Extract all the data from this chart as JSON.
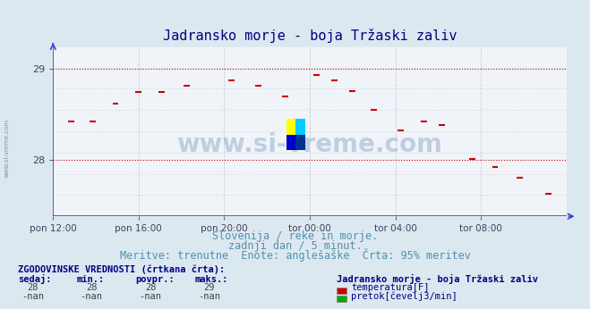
{
  "title": "Jadransko morje - boja Tržaski zaliv",
  "title_color": "#000080",
  "title_fontsize": 11,
  "bg_color": "#dce8f0",
  "plot_bg_color": "#f0f4f8",
  "ylim": [
    27.375,
    29.25
  ],
  "yticks": [
    28,
    29
  ],
  "xlim": [
    0,
    288
  ],
  "xtick_labels": [
    "pon 12:00",
    "pon 16:00",
    "pon 20:00",
    "tor 00:00",
    "tor 04:00",
    "tor 08:00"
  ],
  "xtick_positions": [
    0,
    48,
    96,
    144,
    192,
    240
  ],
  "grid_color": "#c8c8d8",
  "hline_color": "#cc0000",
  "hline_y": [
    28,
    29
  ],
  "axis_color": "#4040cc",
  "watermark_text": "www.si-vreme.com",
  "watermark_color": "#3060a0",
  "watermark_alpha": 0.25,
  "subtitle1": "Slovenija / reke in morje.",
  "subtitle2": "zadnji dan / 5 minut.",
  "subtitle3": "Meritve: trenutne  Enote: anglešaške  Črta: 95% meritev",
  "subtitle_color": "#5090b0",
  "subtitle_fontsize": 8.5,
  "legend_header": "ZGODOVINSKE VREDNOSTI (črtkana črta):",
  "legend_cols": [
    "sedaj:",
    "min.:",
    "povpr.:",
    "maks.:"
  ],
  "legend_values_temp": [
    "28",
    "28",
    "28",
    "29"
  ],
  "legend_values_flow": [
    "-nan",
    "-nan",
    "-nan",
    "-nan"
  ],
  "legend_station": "Jadransko morje - boja Tržaski zaliv",
  "legend_temp_label": "temperatura[F]",
  "legend_flow_label": "pretok[čevelj3/min]",
  "legend_temp_color": "#cc0000",
  "legend_flow_color": "#00aa00",
  "dash_color": "#cc0000",
  "dash_groups": [
    {
      "x_center": 10,
      "y": 28.42
    },
    {
      "x_center": 22,
      "y": 28.42
    },
    {
      "x_center": 35,
      "y": 28.62
    },
    {
      "x_center": 48,
      "y": 28.75
    },
    {
      "x_center": 61,
      "y": 28.75
    },
    {
      "x_center": 75,
      "y": 28.82
    },
    {
      "x_center": 100,
      "y": 28.87
    },
    {
      "x_center": 115,
      "y": 28.82
    },
    {
      "x_center": 130,
      "y": 28.7
    },
    {
      "x_center": 148,
      "y": 28.93
    },
    {
      "x_center": 158,
      "y": 28.87
    },
    {
      "x_center": 168,
      "y": 28.76
    },
    {
      "x_center": 180,
      "y": 28.55
    },
    {
      "x_center": 195,
      "y": 28.32
    },
    {
      "x_center": 208,
      "y": 28.42
    },
    {
      "x_center": 218,
      "y": 28.38
    },
    {
      "x_center": 235,
      "y": 28.01
    },
    {
      "x_center": 248,
      "y": 27.92
    },
    {
      "x_center": 262,
      "y": 27.8
    },
    {
      "x_center": 278,
      "y": 27.62
    }
  ]
}
